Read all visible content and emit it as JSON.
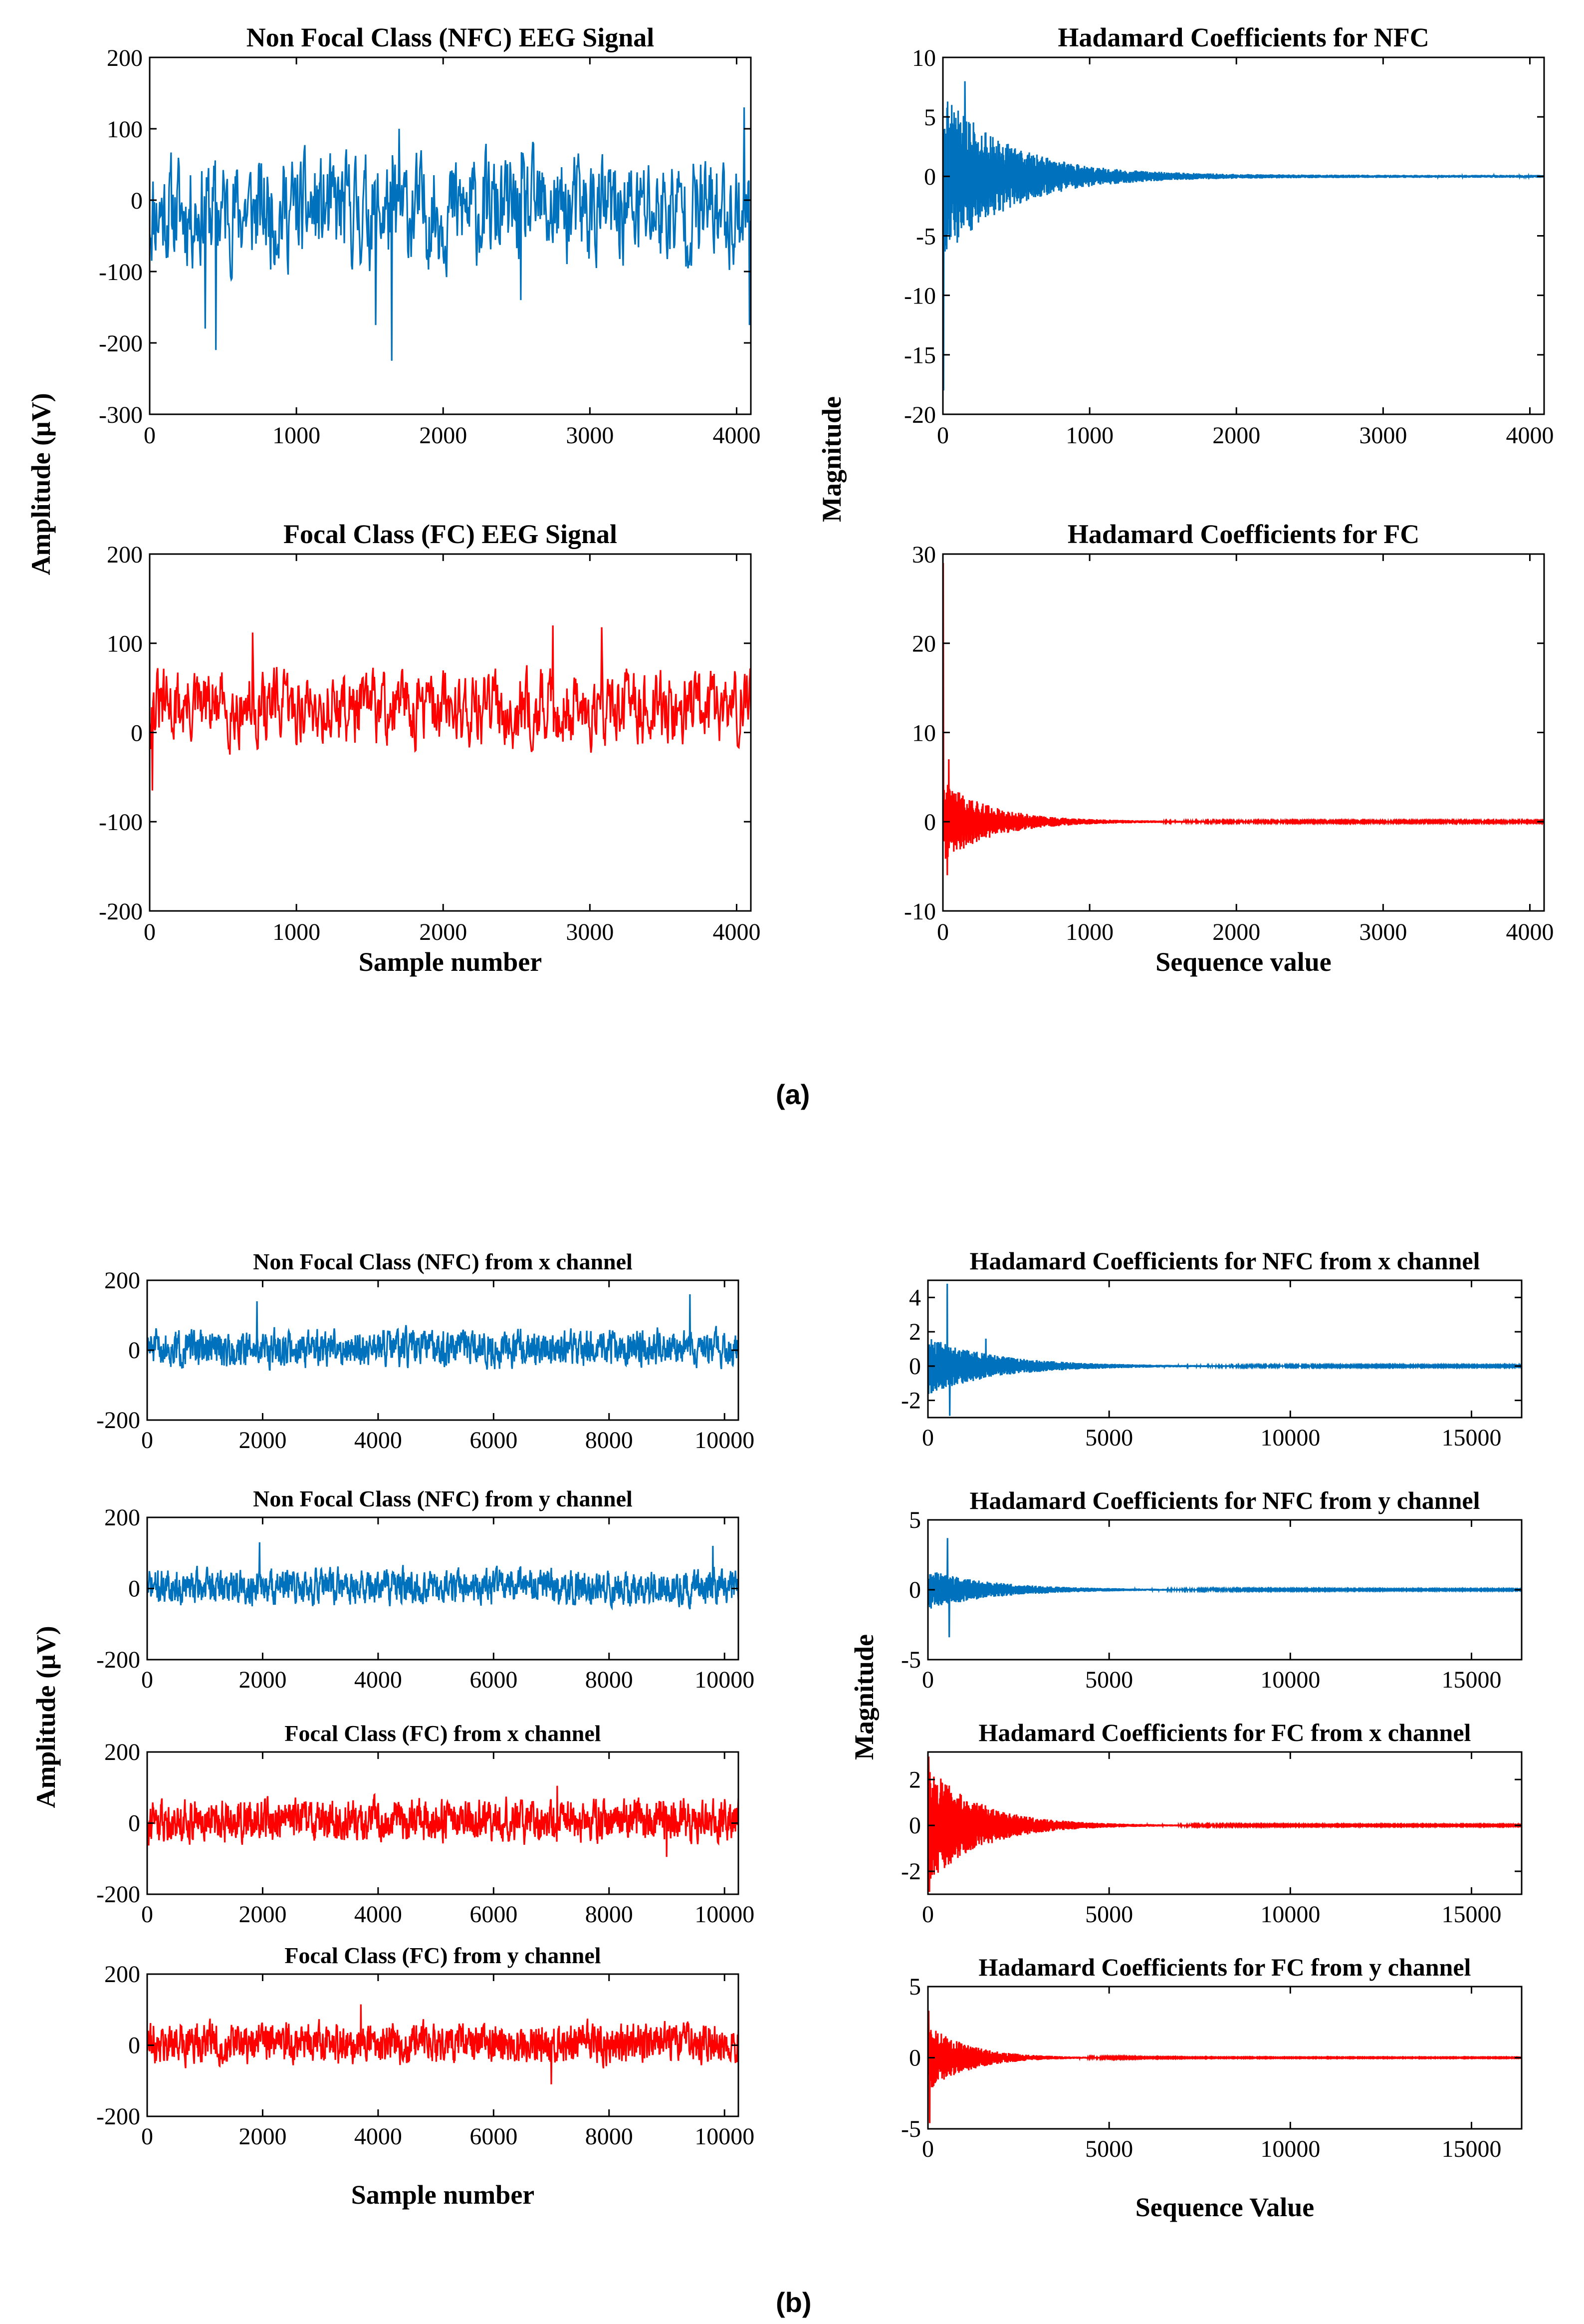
{
  "figure": {
    "label_a": "(a)",
    "label_b": "(b)"
  },
  "colors": {
    "nfc": "#0072BD",
    "fc": "#FF0000"
  },
  "chart_data": [
    {
      "id": "a1",
      "type": "line",
      "title": "Non Focal Class (NFC) EEG Signal",
      "xlabel": "",
      "ylabel": "",
      "xlim": [
        0,
        4097
      ],
      "ylim": [
        -300,
        200
      ],
      "xticks": [
        0,
        1000,
        2000,
        3000,
        4000
      ],
      "yticks": [
        -300,
        -200,
        -100,
        0,
        100,
        200
      ],
      "series": [
        {
          "name": "NFC",
          "color": "#0072BD",
          "kind": "eeg",
          "n": 900,
          "seed": 11,
          "amp": 48,
          "offset": -15,
          "spikes": [
            [
              450,
              -210
            ],
            [
              1650,
              -225
            ],
            [
              1700,
              100
            ],
            [
              4050,
              130
            ],
            [
              4090,
              -175
            ],
            [
              380,
              -180
            ],
            [
              2530,
              -140
            ],
            [
              1540,
              -175
            ]
          ]
        }
      ]
    },
    {
      "id": "a2",
      "type": "line",
      "title": "Hadamard Coefficients for NFC",
      "xlabel": "",
      "ylabel": "",
      "xlim": [
        0,
        4097
      ],
      "ylim": [
        -20,
        10
      ],
      "xticks": [
        0,
        1000,
        2000,
        3000,
        4000
      ],
      "yticks": [
        -20,
        -15,
        -10,
        -5,
        0,
        5,
        10
      ],
      "series": [
        {
          "name": "NFC",
          "color": "#0072BD",
          "kind": "hadamard",
          "n": 2048,
          "seed": 21,
          "a0": 7,
          "decay": 0.0022,
          "floor": 0.12,
          "spikes": [
            [
              5,
              -18
            ],
            [
              150,
              8
            ],
            [
              60,
              6
            ]
          ]
        }
      ]
    },
    {
      "id": "a3",
      "type": "line",
      "title": "Focal Class (FC) EEG Signal",
      "xlabel": "Sample number",
      "ylabel": "",
      "xlim": [
        0,
        4097
      ],
      "ylim": [
        -200,
        200
      ],
      "xticks": [
        0,
        1000,
        2000,
        3000,
        4000
      ],
      "yticks": [
        -200,
        -100,
        0,
        100,
        200
      ],
      "series": [
        {
          "name": "FC",
          "color": "#FF0000",
          "kind": "eeg",
          "n": 900,
          "seed": 31,
          "amp": 26,
          "offset": 28,
          "spikes": [
            [
              20,
              -65
            ],
            [
              2750,
              120
            ],
            [
              3080,
              118
            ],
            [
              700,
              112
            ]
          ]
        }
      ]
    },
    {
      "id": "a4",
      "type": "line",
      "title": "Hadamard Coefficients for FC",
      "xlabel": "Sequence value",
      "ylabel": "",
      "xlim": [
        0,
        4097
      ],
      "ylim": [
        -10,
        30
      ],
      "xticks": [
        0,
        1000,
        2000,
        3000,
        4000
      ],
      "yticks": [
        -10,
        0,
        10,
        20,
        30
      ],
      "series": [
        {
          "name": "FC",
          "color": "#FF0000",
          "kind": "hadamard",
          "n": 2048,
          "seed": 41,
          "a0": 4.5,
          "decay": 0.003,
          "floor": 0.08,
          "spikes": [
            [
              2,
              29
            ],
            [
              30,
              -6
            ],
            [
              40,
              7
            ]
          ]
        }
      ]
    },
    {
      "id": "b1",
      "type": "line",
      "title": "Non Focal Class (NFC)  from  x  channel",
      "xlabel": "",
      "ylabel": "",
      "xlim": [
        0,
        10240
      ],
      "ylim": [
        -200,
        200
      ],
      "xticks": [
        0,
        2000,
        4000,
        6000,
        8000,
        10000
      ],
      "yticks": [
        -200,
        0,
        200
      ],
      "series": [
        {
          "name": "NFC x",
          "color": "#0072BD",
          "kind": "eeg",
          "n": 1600,
          "seed": 51,
          "amp": 32,
          "offset": 5,
          "spikes": [
            [
              1900,
              140
            ],
            [
              9400,
              160
            ]
          ]
        }
      ]
    },
    {
      "id": "b2",
      "type": "line",
      "title": "Hadamard Coefficients for NFC from  x channel",
      "xlabel": "",
      "ylabel": "",
      "xlim": [
        0,
        16384
      ],
      "ylim": [
        -3,
        5
      ],
      "xticks": [
        0,
        5000,
        10000,
        15000
      ],
      "yticks": [
        -2,
        0,
        2,
        4
      ],
      "series": [
        {
          "name": "NFC x",
          "color": "#0072BD",
          "kind": "hadamard",
          "n": 2400,
          "seed": 61,
          "a0": 1.7,
          "decay": 0.00055,
          "floor": 0.03,
          "spikes": [
            [
              530,
              4.8
            ],
            [
              600,
              -2.9
            ],
            [
              1600,
              1.6
            ]
          ]
        }
      ]
    },
    {
      "id": "b3",
      "type": "line",
      "title": "Non Focal Class (NFC)  from  y  channel",
      "xlabel": "",
      "ylabel": "",
      "xlim": [
        0,
        10240
      ],
      "ylim": [
        -200,
        200
      ],
      "xticks": [
        0,
        2000,
        4000,
        6000,
        8000,
        10000
      ],
      "yticks": [
        -200,
        0,
        200
      ],
      "series": [
        {
          "name": "NFC y",
          "color": "#0072BD",
          "kind": "eeg",
          "n": 1600,
          "seed": 71,
          "amp": 30,
          "offset": 5,
          "spikes": [
            [
              1950,
              130
            ],
            [
              9800,
              120
            ]
          ]
        }
      ]
    },
    {
      "id": "b4",
      "type": "line",
      "title": "Hadamard Coefficients for NFC  from  y channel",
      "xlabel": "",
      "ylabel": "",
      "xlim": [
        0,
        16384
      ],
      "ylim": [
        -5,
        5
      ],
      "xticks": [
        0,
        5000,
        10000,
        15000
      ],
      "yticks": [
        -5,
        0,
        5
      ],
      "series": [
        {
          "name": "NFC y",
          "color": "#0072BD",
          "kind": "hadamard",
          "n": 2400,
          "seed": 81,
          "a0": 1.4,
          "decay": 0.00055,
          "floor": 0.03,
          "spikes": [
            [
              540,
              3.7
            ],
            [
              590,
              -3.4
            ]
          ]
        }
      ]
    },
    {
      "id": "b5",
      "type": "line",
      "title": "Focal Class (FC) from x  channel",
      "xlabel": "",
      "ylabel": "",
      "xlim": [
        0,
        10240
      ],
      "ylim": [
        -200,
        200
      ],
      "xticks": [
        0,
        2000,
        4000,
        6000,
        8000,
        10000
      ],
      "yticks": [
        -200,
        0,
        200
      ],
      "series": [
        {
          "name": "FC x",
          "color": "#FF0000",
          "kind": "eeg",
          "n": 1600,
          "seed": 91,
          "amp": 36,
          "offset": 8,
          "spikes": [
            [
              7100,
              105
            ],
            [
              9000,
              -95
            ]
          ]
        }
      ]
    },
    {
      "id": "b6",
      "type": "line",
      "title": "Hadamard Coefficients for FC from x channel",
      "xlabel": "",
      "ylabel": "",
      "xlim": [
        0,
        16384
      ],
      "ylim": [
        -3,
        3.2
      ],
      "xticks": [
        0,
        5000,
        10000,
        15000
      ],
      "yticks": [
        -2,
        0,
        2
      ],
      "series": [
        {
          "name": "FC x",
          "color": "#FF0000",
          "kind": "hadamard",
          "n": 2400,
          "seed": 101,
          "a0": 2.6,
          "decay": 0.0007,
          "floor": 0.02,
          "spikes": [
            [
              20,
              3
            ],
            [
              40,
              -2.9
            ]
          ]
        }
      ]
    },
    {
      "id": "b7",
      "type": "line",
      "title": "Focal Class (FC) from  y channel",
      "xlabel": "Sample number",
      "ylabel": "",
      "xlim": [
        0,
        10240
      ],
      "ylim": [
        -200,
        200
      ],
      "xticks": [
        0,
        2000,
        4000,
        6000,
        8000,
        10000
      ],
      "yticks": [
        -200,
        0,
        200
      ],
      "series": [
        {
          "name": "FC y",
          "color": "#FF0000",
          "kind": "eeg",
          "n": 1600,
          "seed": 111,
          "amp": 34,
          "offset": 8,
          "spikes": [
            [
              3700,
              115
            ],
            [
              7000,
              -110
            ]
          ]
        }
      ]
    },
    {
      "id": "b8",
      "type": "line",
      "title": "Hadamard Coefficients for FC from y channel",
      "xlabel": "Sequence Value",
      "ylabel": "",
      "xlim": [
        0,
        16384
      ],
      "ylim": [
        -5,
        5
      ],
      "xticks": [
        0,
        5000,
        10000,
        15000
      ],
      "yticks": [
        -5,
        0,
        5
      ],
      "series": [
        {
          "name": "FC y",
          "color": "#FF0000",
          "kind": "hadamard",
          "n": 2400,
          "seed": 121,
          "a0": 2.4,
          "decay": 0.0009,
          "floor": 0.02,
          "spikes": [
            [
              20,
              3.3
            ],
            [
              50,
              -4.6
            ]
          ]
        }
      ]
    }
  ],
  "shared_labels": {
    "a_ylabel_left": "Amplitude (μV)",
    "a_ylabel_right": "Magnitude",
    "b_ylabel_left": "Amplitude (μV)",
    "b_ylabel_right": "Magnitude"
  }
}
